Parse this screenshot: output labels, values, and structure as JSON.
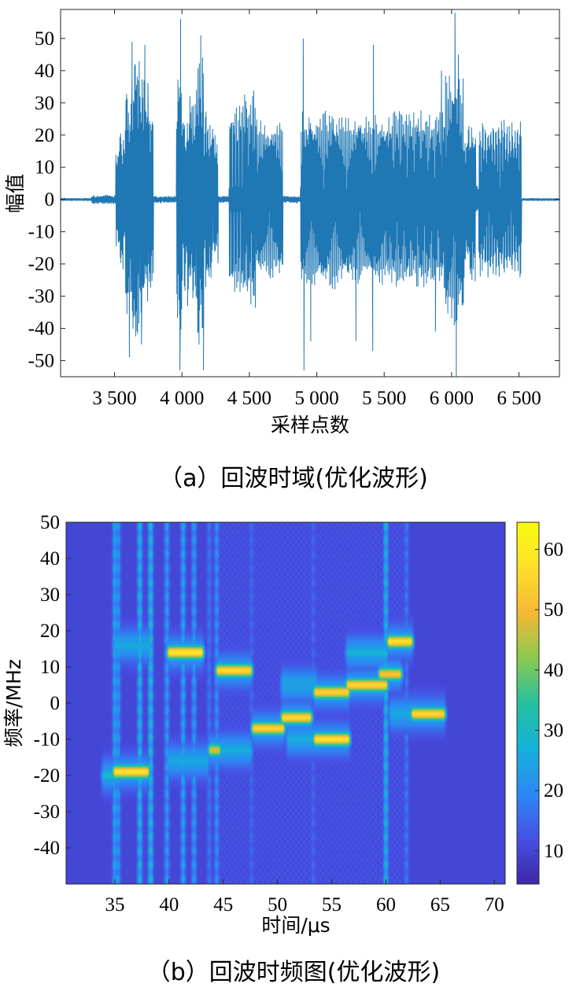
{
  "chart_data": [
    {
      "type": "line",
      "caption": "（a）回波时域(优化波形)",
      "xlabel": "采样点数",
      "ylabel": "幅值",
      "xlim": [
        3100,
        6800
      ],
      "ylim": [
        -55,
        59
      ],
      "xticks": [
        3500,
        4000,
        4500,
        5000,
        5500,
        6000,
        6500
      ],
      "xtick_labels": [
        "3 500",
        "4 000",
        "4 500",
        "5 000",
        "5 500",
        "6 000",
        "6 500"
      ],
      "yticks": [
        -50,
        -40,
        -30,
        -20,
        -10,
        0,
        10,
        20,
        30,
        40,
        50
      ],
      "ytick_labels": [
        "-50",
        "-40",
        "-30",
        "-20",
        "-10",
        "0",
        "10",
        "20",
        "30",
        "40",
        "50"
      ],
      "grid": false,
      "line_color": "#1f77b4",
      "bursts": [
        {
          "x0": 3100,
          "x1": 3330,
          "amp": 0.5,
          "osc": 0
        },
        {
          "x0": 3330,
          "x1": 3510,
          "amp": 1.5,
          "osc": 0
        },
        {
          "x0": 3510,
          "x1": 3540,
          "amp": 18,
          "osc": 0
        },
        {
          "x0": 3540,
          "x1": 3580,
          "amp": 23,
          "osc": 0
        },
        {
          "x0": 3580,
          "x1": 3630,
          "amp": 40,
          "osc": 0
        },
        {
          "x0": 3630,
          "x1": 3690,
          "amp": 48,
          "osc": 0
        },
        {
          "x0": 3690,
          "x1": 3750,
          "amp": 43,
          "osc": 0
        },
        {
          "x0": 3750,
          "x1": 3790,
          "amp": 30,
          "osc": 0
        },
        {
          "x0": 3790,
          "x1": 3900,
          "amp": 1.2,
          "osc": 0
        },
        {
          "x0": 3900,
          "x1": 3960,
          "amp": 1.2,
          "osc": 0
        },
        {
          "x0": 3960,
          "x1": 4000,
          "amp": 45,
          "osc": 0
        },
        {
          "x0": 4000,
          "x1": 4040,
          "amp": 30,
          "osc": 0
        },
        {
          "x0": 4040,
          "x1": 4110,
          "amp": 38,
          "osc": 0
        },
        {
          "x0": 4110,
          "x1": 4160,
          "amp": 50,
          "osc": 0
        },
        {
          "x0": 4160,
          "x1": 4230,
          "amp": 30,
          "osc": 0
        },
        {
          "x0": 4230,
          "x1": 4270,
          "amp": 22,
          "osc": 0
        },
        {
          "x0": 4270,
          "x1": 4350,
          "amp": 1.2,
          "osc": 0
        },
        {
          "x0": 4350,
          "x1": 4460,
          "amp": 30,
          "osc": 9
        },
        {
          "x0": 4460,
          "x1": 4550,
          "amp": 34,
          "osc": 8
        },
        {
          "x0": 4550,
          "x1": 4750,
          "amp": 25,
          "osc": 20
        },
        {
          "x0": 4750,
          "x1": 4880,
          "amp": 1.2,
          "osc": 0
        },
        {
          "x0": 4880,
          "x1": 5220,
          "amp": 28,
          "osc": 34
        },
        {
          "x0": 5220,
          "x1": 5520,
          "amp": 27,
          "osc": 30
        },
        {
          "x0": 5520,
          "x1": 5950,
          "amp": 28,
          "osc": 40
        },
        {
          "x0": 5950,
          "x1": 6090,
          "amp": 40,
          "osc": 15
        },
        {
          "x0": 6090,
          "x1": 6180,
          "amp": 26,
          "osc": 0
        },
        {
          "x0": 6180,
          "x1": 6200,
          "amp": 5,
          "osc": 0
        },
        {
          "x0": 6200,
          "x1": 6520,
          "amp": 25,
          "osc": 16
        },
        {
          "x0": 6520,
          "x1": 6800,
          "amp": 0.5,
          "osc": 0
        }
      ],
      "spikes": [
        {
          "x": 3630,
          "y": 49
        },
        {
          "x": 3610,
          "y": -49
        },
        {
          "x": 3725,
          "y": 48
        },
        {
          "x": 3700,
          "y": -45
        },
        {
          "x": 3990,
          "y": 56
        },
        {
          "x": 3985,
          "y": -53
        },
        {
          "x": 4140,
          "y": 51
        },
        {
          "x": 4160,
          "y": -53
        },
        {
          "x": 4900,
          "y": 50
        },
        {
          "x": 4905,
          "y": -53
        },
        {
          "x": 4955,
          "y": -44
        },
        {
          "x": 5420,
          "y": 48
        },
        {
          "x": 5415,
          "y": -47
        },
        {
          "x": 5290,
          "y": -44
        },
        {
          "x": 5880,
          "y": -41
        },
        {
          "x": 5925,
          "y": 40
        },
        {
          "x": 6025,
          "y": 58
        },
        {
          "x": 6035,
          "y": -55
        },
        {
          "x": 6050,
          "y": 45
        }
      ]
    },
    {
      "type": "heatmap",
      "caption": "（b）回波时频图(优化波形)",
      "xlabel": "时间/μs",
      "ylabel": "频率/MHz",
      "xlim": [
        30.5,
        71
      ],
      "ylim": [
        -50,
        50
      ],
      "xticks": [
        35,
        40,
        45,
        50,
        55,
        60,
        65,
        70
      ],
      "yticks": [
        -40,
        -30,
        -20,
        -10,
        0,
        10,
        20,
        30,
        40,
        50
      ],
      "colorbar": {
        "min": 4.5,
        "max": 64.5,
        "ticks": [
          10,
          20,
          30,
          40,
          50,
          60
        ]
      },
      "colormap": [
        "#3e26a8",
        "#4651e4",
        "#2c89f4",
        "#14b1d9",
        "#25c0a0",
        "#8cca4f",
        "#f6b834",
        "#fde02b",
        "#f9fb0e"
      ],
      "background_value": 10,
      "segments": [
        {
          "t0": 34,
          "t1": 35,
          "f": -20,
          "v": 30
        },
        {
          "t0": 35,
          "t1": 38,
          "f": -19,
          "v": 58
        },
        {
          "t0": 35,
          "t1": 38.3,
          "f": 16,
          "v": 26
        },
        {
          "t0": 40,
          "t1": 43,
          "f": 14,
          "v": 59
        },
        {
          "t0": 40,
          "t1": 43.5,
          "f": -16,
          "v": 26
        },
        {
          "t0": 43.8,
          "t1": 44.6,
          "f": -13,
          "v": 48
        },
        {
          "t0": 44.5,
          "t1": 47.5,
          "f": 9,
          "v": 56
        },
        {
          "t0": 44.5,
          "t1": 47.5,
          "f": -13,
          "v": 27
        },
        {
          "t0": 47.8,
          "t1": 50.5,
          "f": -7,
          "v": 55
        },
        {
          "t0": 50.5,
          "t1": 53,
          "f": -4,
          "v": 56
        },
        {
          "t0": 51,
          "t1": 53.5,
          "f": -10,
          "v": 27
        },
        {
          "t0": 50.5,
          "t1": 53.5,
          "f": 5,
          "v": 24
        },
        {
          "t0": 53.5,
          "t1": 56.5,
          "f": 3,
          "v": 55
        },
        {
          "t0": 53.5,
          "t1": 56.5,
          "f": -10,
          "v": 58
        },
        {
          "t0": 56.5,
          "t1": 60,
          "f": 5,
          "v": 56
        },
        {
          "t0": 56.5,
          "t1": 60,
          "f": 14,
          "v": 28
        },
        {
          "t0": 59.5,
          "t1": 61.3,
          "f": 8,
          "v": 52
        },
        {
          "t0": 60.3,
          "t1": 62.3,
          "f": 17,
          "v": 58
        },
        {
          "t0": 60.5,
          "t1": 63,
          "f": -3,
          "v": 26
        },
        {
          "t0": 62.5,
          "t1": 65.3,
          "f": -3,
          "v": 56
        }
      ],
      "vertical_bands": [
        {
          "t": 35,
          "v": 26
        },
        {
          "t": 35.3,
          "v": 24
        },
        {
          "t": 37.3,
          "v": 30
        },
        {
          "t": 38.3,
          "v": 32
        },
        {
          "t": 39.8,
          "v": 24
        },
        {
          "t": 41.3,
          "v": 26
        },
        {
          "t": 42.3,
          "v": 24
        },
        {
          "t": 43.7,
          "v": 18
        },
        {
          "t": 44.4,
          "v": 22
        },
        {
          "t": 47.6,
          "v": 16
        },
        {
          "t": 53.3,
          "v": 16
        },
        {
          "t": 60,
          "v": 30
        },
        {
          "t": 61.9,
          "v": 18
        }
      ]
    }
  ]
}
